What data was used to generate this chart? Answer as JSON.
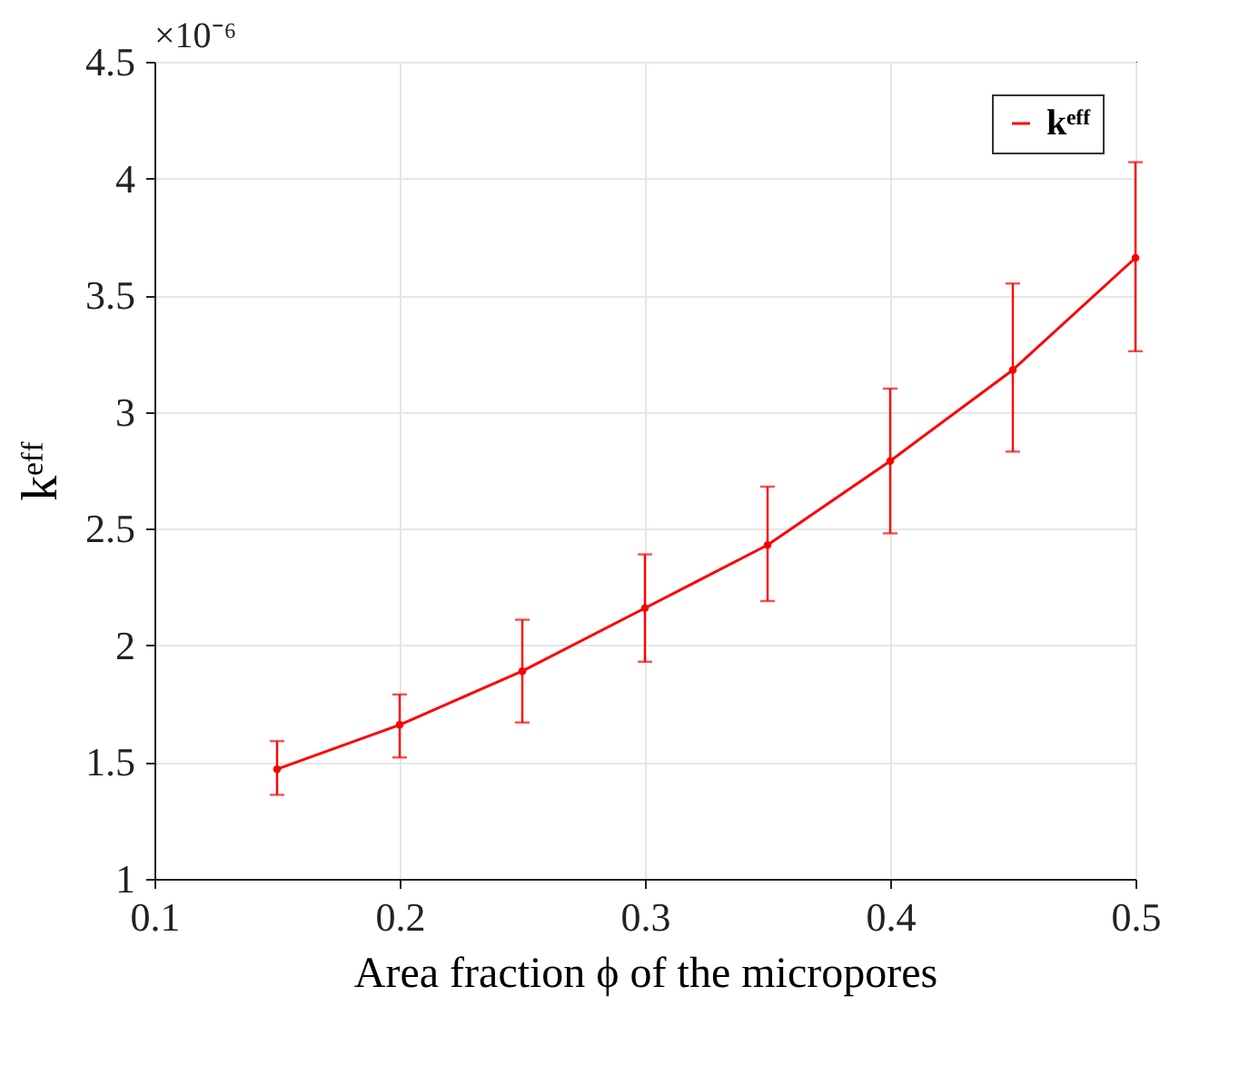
{
  "chart_data": {
    "type": "line",
    "xlabel": "Area fraction ϕ of the micropores",
    "ylabel": "kᵉᶠᶠ",
    "annotations": [
      "×10⁻⁶"
    ],
    "x": [
      0.15,
      0.2,
      0.25,
      0.3,
      0.35,
      0.4,
      0.45,
      0.5
    ],
    "series": [
      {
        "name": "kᵉᶠᶠ",
        "color": "#ff0000",
        "values": [
          1.47,
          1.66,
          1.89,
          2.16,
          2.43,
          2.79,
          3.18,
          3.66
        ],
        "errors": [
          [
            1.36,
            1.59
          ],
          [
            1.52,
            1.79
          ],
          [
            1.67,
            2.11
          ],
          [
            1.93,
            2.39
          ],
          [
            2.19,
            2.68
          ],
          [
            2.48,
            3.1
          ],
          [
            2.83,
            3.55
          ],
          [
            3.26,
            4.07
          ]
        ]
      }
    ],
    "xlim": [
      0.1,
      0.5
    ],
    "xticks": [
      0.1,
      0.2,
      0.3,
      0.4,
      0.5
    ],
    "ylim": [
      1,
      4.5
    ],
    "yticks": [
      1,
      1.5,
      2,
      2.5,
      3,
      3.5,
      4,
      4.5
    ],
    "grid": true,
    "legend": "top right",
    "marker": "circle",
    "line_style": "solid"
  }
}
